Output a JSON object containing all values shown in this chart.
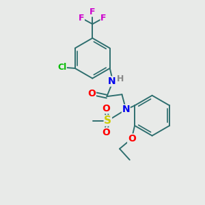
{
  "bg_color": "#e8eae8",
  "bond_color": "#2d6e6e",
  "atom_colors": {
    "F": "#cc00cc",
    "Cl": "#00bb00",
    "N": "#0000ee",
    "O": "#ff0000",
    "S": "#cccc00",
    "H": "#888888",
    "C": "#2d6e6e"
  },
  "bond_width": 1.4,
  "font_size": 10,
  "xlim": [
    0,
    10
  ],
  "ylim": [
    0,
    10
  ]
}
